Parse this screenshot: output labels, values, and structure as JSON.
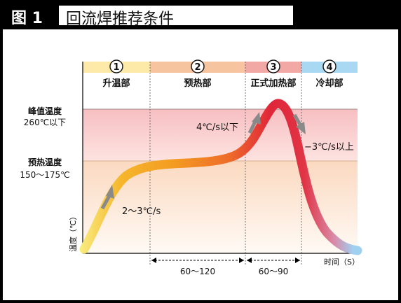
{
  "figure": {
    "label": "图 1",
    "title": "回流焊推荐条件"
  },
  "phases": [
    {
      "num": "1",
      "name": "升温部"
    },
    {
      "num": "2",
      "name": "预热部"
    },
    {
      "num": "3",
      "name": "正式加热部"
    },
    {
      "num": "4",
      "name": "冷却部"
    }
  ],
  "levels": {
    "peak_label": "峰值温度",
    "peak_value": "260℃以下",
    "preheat_label": "预热温度",
    "preheat_value": "150～175℃"
  },
  "rates": {
    "ramp_up": "2～3℃/s",
    "heat_up": "4℃/s以下",
    "cool_down": "−3℃/s以上"
  },
  "axes": {
    "y_label": "温度（℃）",
    "x_label": "时间（S）"
  },
  "durations": {
    "preheat": "60～120",
    "main_heat": "60～90"
  },
  "colors": {
    "phase1": "#fde9a8",
    "phase2": "#f7c4a0",
    "phase3": "#f2a9a6",
    "phase4": "#a9d9f2",
    "curve_low": "#f5e070",
    "curve_mid": "#f39a20",
    "curve_high": "#e0253a",
    "curve_cool": "#9fd0f0",
    "arrow": "#8a8a8a"
  }
}
